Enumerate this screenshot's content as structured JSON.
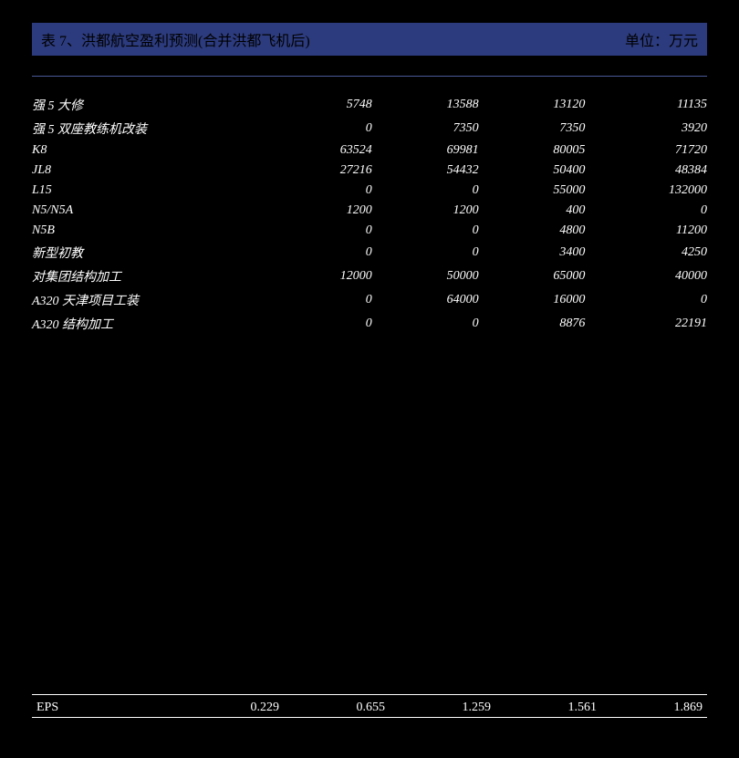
{
  "header": {
    "title": "表 7、洪都航空盈利预测(合并洪都飞机后)",
    "unit": "单位：万元"
  },
  "table": {
    "rows": [
      {
        "label": "强 5 大修",
        "c1": "5748",
        "c2": "13588",
        "c3": "13120",
        "c4": "11135"
      },
      {
        "label": "强 5 双座教练机改装",
        "c1": "0",
        "c2": "7350",
        "c3": "7350",
        "c4": "3920"
      },
      {
        "label": "K8",
        "c1": "63524",
        "c2": "69981",
        "c3": "80005",
        "c4": "71720"
      },
      {
        "label": "JL8",
        "c1": "27216",
        "c2": "54432",
        "c3": "50400",
        "c4": "48384"
      },
      {
        "label": "L15",
        "c1": "0",
        "c2": "0",
        "c3": "55000",
        "c4": "132000"
      },
      {
        "label": "N5/N5A",
        "c1": "1200",
        "c2": "1200",
        "c3": "400",
        "c4": "0"
      },
      {
        "label": "N5B",
        "c1": "0",
        "c2": "0",
        "c3": "4800",
        "c4": "11200"
      },
      {
        "label": "新型初教",
        "c1": "0",
        "c2": "0",
        "c3": "3400",
        "c4": "4250"
      },
      {
        "label": "对集团结构加工",
        "c1": "12000",
        "c2": "50000",
        "c3": "65000",
        "c4": "40000"
      },
      {
        "label": "A320 天津项目工装",
        "c1": "0",
        "c2": "64000",
        "c3": "16000",
        "c4": "0"
      },
      {
        "label": "A320 结构加工",
        "c1": "0",
        "c2": "0",
        "c3": "8876",
        "c4": "22191"
      }
    ]
  },
  "footer": {
    "label": "EPS",
    "v1": "0.229",
    "v2": "0.655",
    "v3": "1.259",
    "v4": "1.561",
    "v5": "1.869"
  },
  "colors": {
    "header_bg": "#2c3b7e",
    "text": "#ffffff",
    "bg": "#000000",
    "divider": "#4a5a9a"
  }
}
